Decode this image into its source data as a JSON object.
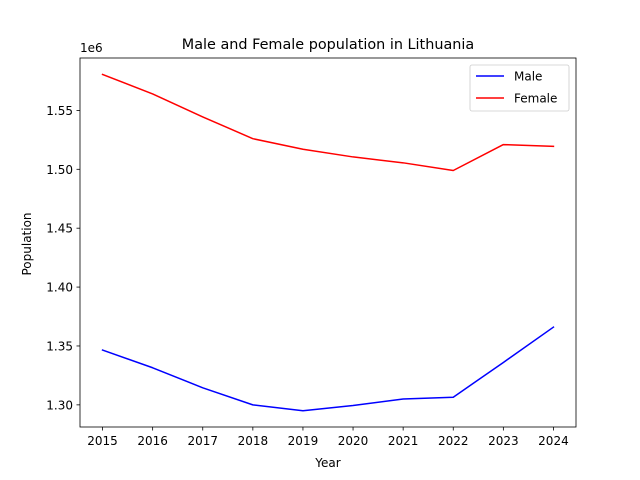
{
  "chart_data": {
    "type": "line",
    "title": "Male and Female population in Lithuania",
    "xlabel": "Year",
    "ylabel": "Population",
    "y_offset_label": "1e6",
    "x": [
      2015,
      2016,
      2017,
      2018,
      2019,
      2020,
      2021,
      2022,
      2023,
      2024
    ],
    "x_tick_labels": [
      "2015",
      "2016",
      "2017",
      "2018",
      "2019",
      "2020",
      "2021",
      "2022",
      "2023",
      "2024"
    ],
    "y_ticks": [
      1.3,
      1.35,
      1.4,
      1.45,
      1.5,
      1.55
    ],
    "y_tick_labels": [
      "1.30",
      "1.35",
      "1.40",
      "1.45",
      "1.50",
      "1.55"
    ],
    "y_scale": 1000000,
    "xlim": [
      2014.55,
      2024.45
    ],
    "ylim": [
      1.2812,
      1.5945
    ],
    "grid": false,
    "legend_position": "top-right",
    "series": [
      {
        "name": "Male",
        "color": "#0000ff",
        "values": [
          1346500,
          1331500,
          1314500,
          1300000,
          1295000,
          1299500,
          1305000,
          1306500,
          1336000,
          1366000
        ]
      },
      {
        "name": "Female",
        "color": "#ff0000",
        "values": [
          1580500,
          1564000,
          1544500,
          1526000,
          1517000,
          1510500,
          1505500,
          1499000,
          1521000,
          1519500
        ]
      }
    ]
  }
}
